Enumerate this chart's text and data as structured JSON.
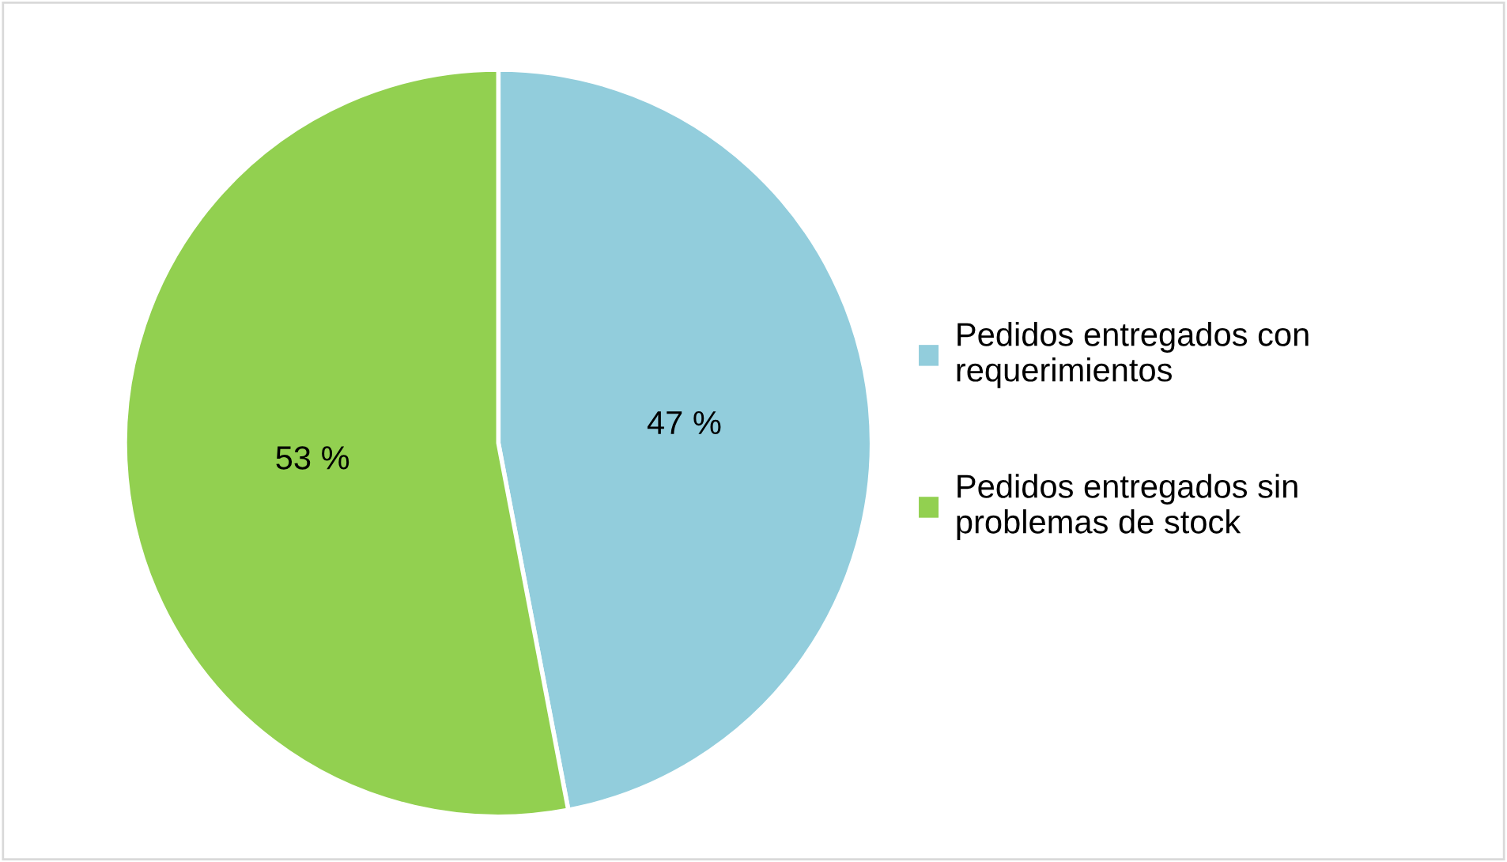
{
  "chart_data": {
    "type": "pie",
    "categories": [
      "Pedidos entregados con\nrequerimientos",
      "Pedidos entregados sin\nproblemas de stock"
    ],
    "values": [
      47,
      53
    ],
    "colors": [
      "#92cddc",
      "#92d050"
    ],
    "value_labels": [
      "47 %",
      "53 %"
    ],
    "legend": "right"
  }
}
